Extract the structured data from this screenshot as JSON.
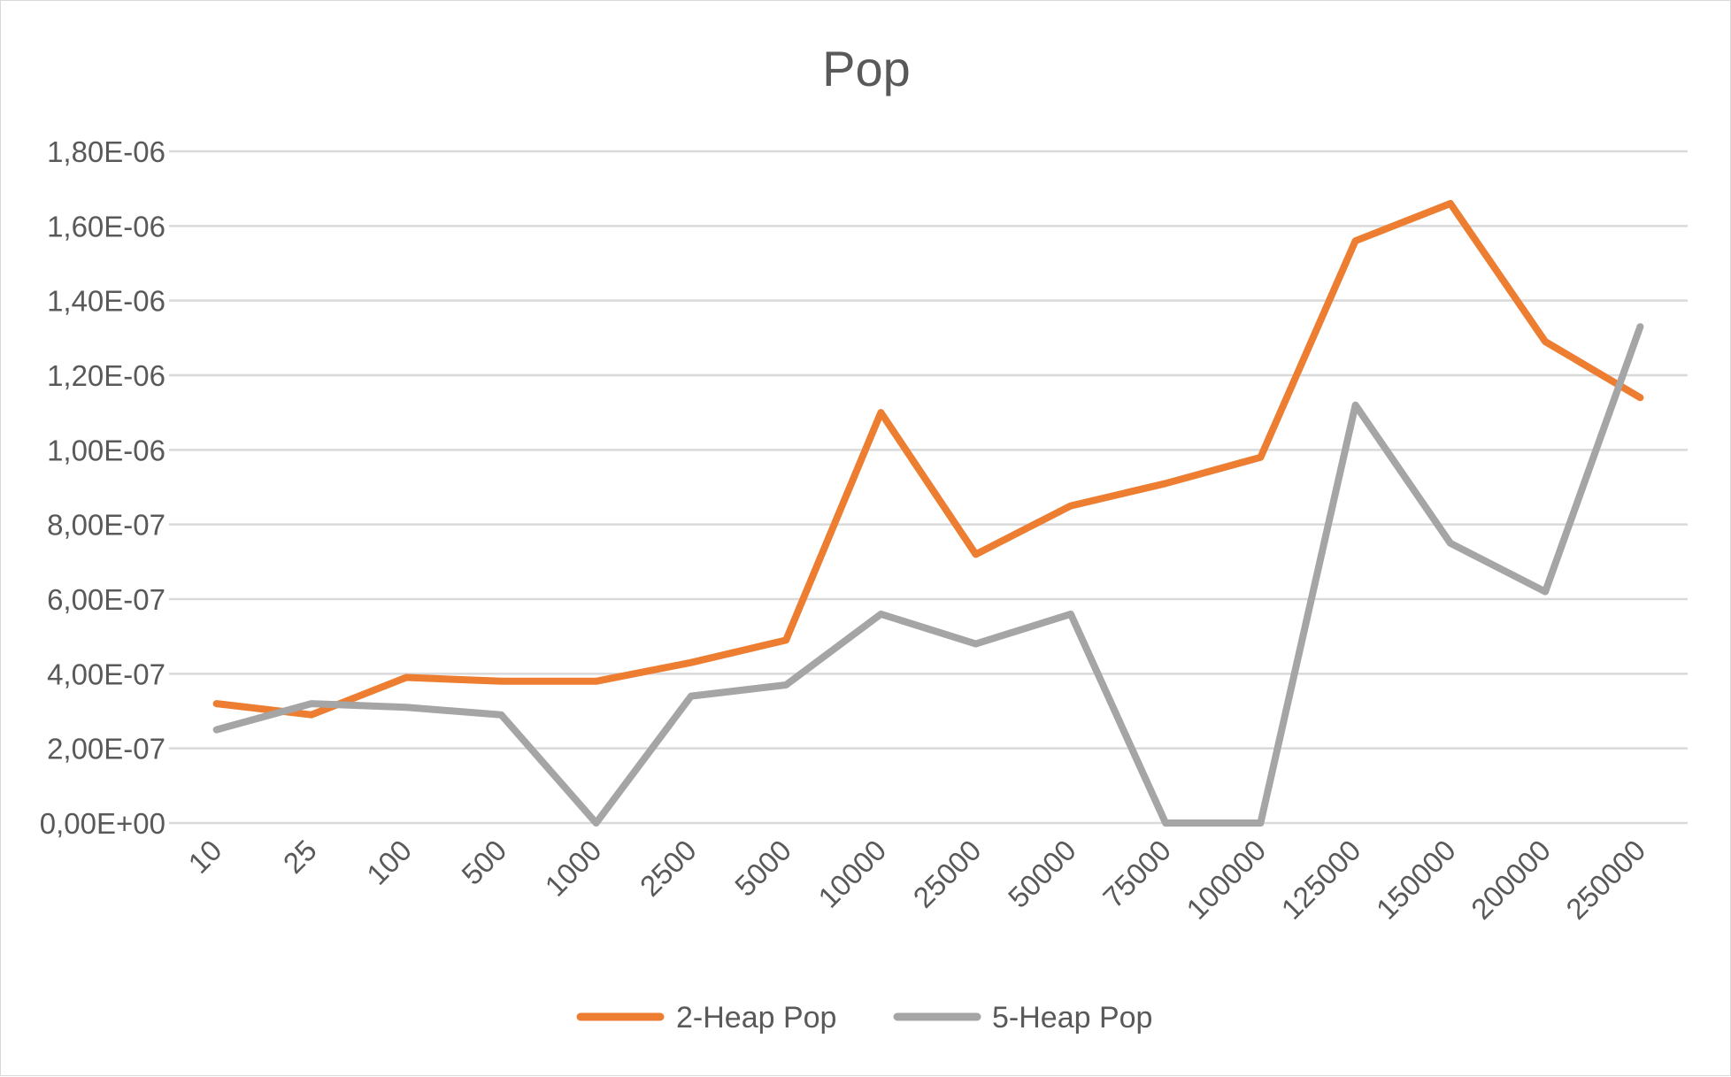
{
  "chart_data": {
    "type": "line",
    "title": "Pop",
    "categories": [
      "10",
      "25",
      "100",
      "500",
      "1000",
      "2500",
      "5000",
      "10000",
      "25000",
      "50000",
      "75000",
      "100000",
      "125000",
      "150000",
      "200000",
      "250000"
    ],
    "series": [
      {
        "name": "2-Heap Pop",
        "color": "#ed7d31",
        "values": [
          3.2e-07,
          2.9e-07,
          3.9e-07,
          3.8e-07,
          3.8e-07,
          4.3e-07,
          4.9e-07,
          1.1e-06,
          7.2e-07,
          8.5e-07,
          9.1e-07,
          9.8e-07,
          1.56e-06,
          1.66e-06,
          1.29e-06,
          1.14e-06
        ]
      },
      {
        "name": "5-Heap Pop",
        "color": "#a5a5a5",
        "values": [
          2.5e-07,
          3.2e-07,
          3.1e-07,
          2.9e-07,
          0.0,
          3.4e-07,
          3.7e-07,
          5.6e-07,
          4.8e-07,
          5.6e-07,
          0.0,
          0.0,
          1.12e-06,
          7.5e-07,
          6.2e-07,
          1.33e-06
        ]
      }
    ],
    "y_ticks": [
      "0,00E+00",
      "2,00E-07",
      "4,00E-07",
      "6,00E-07",
      "8,00E-07",
      "1,00E-06",
      "1,20E-06",
      "1,40E-06",
      "1,60E-06",
      "1,80E-06"
    ],
    "ylim": [
      0,
      1.8e-06
    ],
    "grid": true,
    "legend_position": "bottom"
  }
}
